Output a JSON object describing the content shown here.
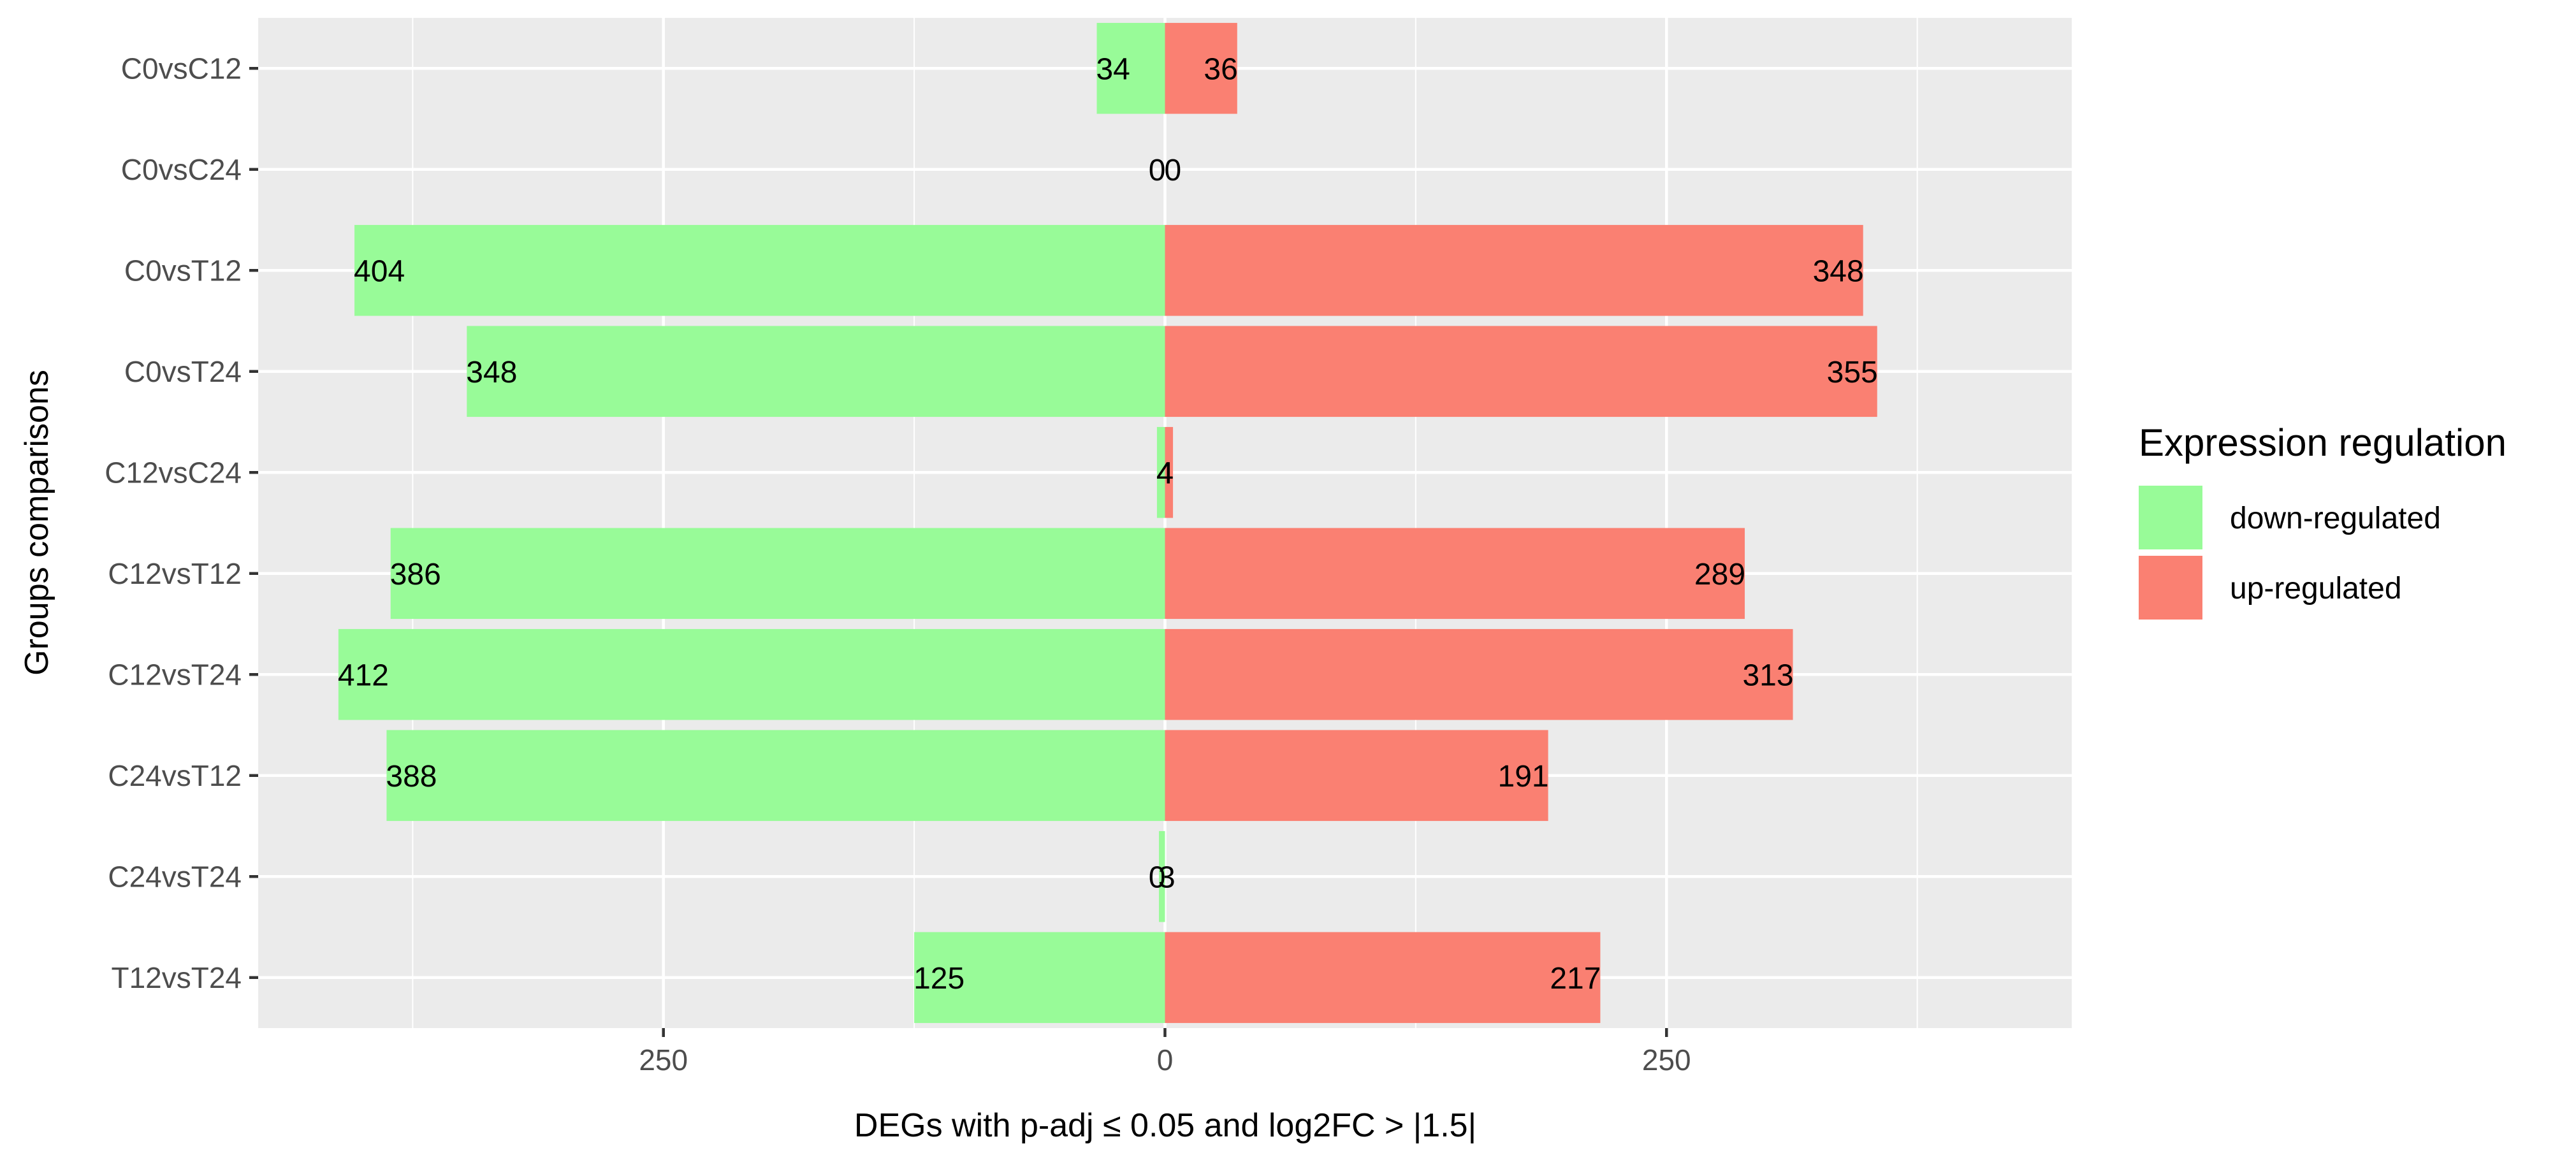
{
  "chart_data": {
    "type": "bar",
    "orientation": "horizontal-diverging",
    "categories": [
      "C0vsC12",
      "C0vsC24",
      "C0vsT12",
      "C0vsT24",
      "C12vsC24",
      "C12vsT12",
      "C12vsT24",
      "C24vsT12",
      "C24vsT24",
      "T12vsT24"
    ],
    "series": [
      {
        "name": "down-regulated",
        "color": "#98fb98",
        "values": [
          34,
          0,
          404,
          348,
          4,
          386,
          412,
          388,
          3,
          125
        ]
      },
      {
        "name": "up-regulated",
        "color": "#fa8072",
        "values": [
          36,
          0,
          348,
          355,
          4,
          289,
          313,
          191,
          0,
          217
        ]
      }
    ],
    "x_ticks": [
      {
        "value": -250,
        "label": "250"
      },
      {
        "value": 0,
        "label": "0"
      },
      {
        "value": 250,
        "label": "250"
      }
    ],
    "xlim": [
      -452,
      452
    ],
    "xlabel": "DEGs with p-adj ≤ 0.05 and log2FC > |1.5|",
    "ylabel": "Groups comparisons",
    "legend": {
      "title": "Expression regulation",
      "position": "right"
    },
    "background": "#ebebeb",
    "grid": true
  }
}
